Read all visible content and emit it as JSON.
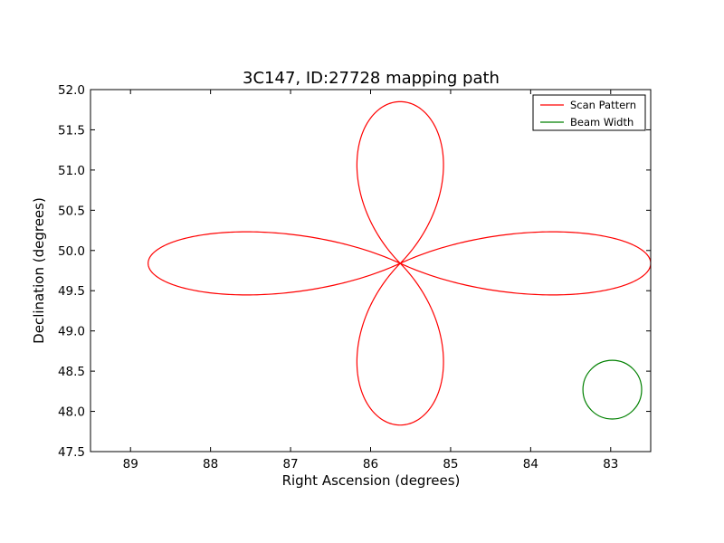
{
  "chart_data": {
    "type": "line",
    "title": "3C147, ID:27728 mapping path",
    "xlabel": "Right Ascension (degrees)",
    "ylabel": "Declination (degrees)",
    "xlim": [
      89.5,
      82.5
    ],
    "ylim": [
      47.5,
      52.0
    ],
    "x_inverted": true,
    "xticks": [
      89,
      88,
      87,
      86,
      85,
      84,
      83
    ],
    "xtick_labels": [
      "89",
      "88",
      "87",
      "86",
      "85",
      "84",
      "83"
    ],
    "yticks": [
      47.5,
      48.0,
      48.5,
      49.0,
      49.5,
      50.0,
      50.5,
      51.0,
      51.5,
      52.0
    ],
    "ytick_labels": [
      "47.5",
      "48.0",
      "48.5",
      "49.0",
      "49.5",
      "50.0",
      "50.5",
      "51.0",
      "51.5",
      "52.0"
    ],
    "grid": false,
    "legend_position": "top-right",
    "series": [
      {
        "name": "Scan Pattern",
        "color": "#ff0000",
        "shape": "four-petal rosette",
        "center": [
          85.63,
          49.84
        ],
        "petal_extents": {
          "north_dec": 51.85,
          "south_dec": 47.83,
          "east_ra": 82.5,
          "west_ra": 88.78,
          "vertical_petal_ra_range": [
            84.88,
            86.41
          ],
          "horizontal_petal_dec_range": [
            49.29,
            50.4
          ]
        }
      },
      {
        "name": "Beam Width",
        "color": "#008000",
        "shape": "circle",
        "center": [
          82.98,
          48.27
        ],
        "radius_dec": 0.365
      }
    ]
  }
}
